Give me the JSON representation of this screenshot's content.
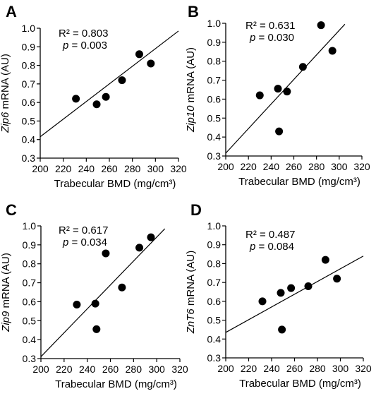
{
  "chart_data": [
    {
      "type": "scatter",
      "panel": "A",
      "xlabel": "Trabecular BMD (mg/cm³)",
      "ylabel_italic": "Zip6",
      "ylabel_rest": " mRNA (AU)",
      "xlim": [
        200,
        320
      ],
      "ylim": [
        0.3,
        1.0
      ],
      "xticks": [
        "200",
        "220",
        "240",
        "260",
        "280",
        "300",
        "320"
      ],
      "yticks": [
        "0.3",
        "0.4",
        "0.5",
        "0.6",
        "0.7",
        "0.8",
        "0.9",
        "1.0"
      ],
      "r2": "R² = 0.803",
      "p_label": "p",
      "p_value": " = 0.003",
      "points": [
        [
          231,
          0.62
        ],
        [
          249,
          0.59
        ],
        [
          257,
          0.63
        ],
        [
          271,
          0.72
        ],
        [
          286,
          0.86
        ],
        [
          296,
          0.81
        ]
      ],
      "fit": [
        [
          200,
          0.415
        ],
        [
          320,
          0.985
        ]
      ]
    },
    {
      "type": "scatter",
      "panel": "B",
      "xlabel": "Trabecular BMD (mg/cm³)",
      "ylabel_italic": "Zip10",
      "ylabel_rest": " mRNA (AU)",
      "xlim": [
        200,
        320
      ],
      "ylim": [
        0.3,
        1.0
      ],
      "xticks": [
        "200",
        "220",
        "240",
        "260",
        "280",
        "300",
        "320"
      ],
      "yticks": [
        "0.3",
        "0.4",
        "0.5",
        "0.6",
        "0.7",
        "0.8",
        "0.9",
        "1.0"
      ],
      "r2": "R² = 0.631",
      "p_label": "p",
      "p_value": " = 0.030",
      "points": [
        [
          230,
          0.62
        ],
        [
          246,
          0.655
        ],
        [
          247,
          0.43
        ],
        [
          254,
          0.64
        ],
        [
          268,
          0.77
        ],
        [
          284,
          0.99
        ],
        [
          294,
          0.855
        ]
      ],
      "fit": [
        [
          200,
          0.315
        ],
        [
          305,
          0.995
        ]
      ]
    },
    {
      "type": "scatter",
      "panel": "C",
      "xlabel": "Trabecular BMD (mg/cm³)",
      "ylabel_italic": "Zip9",
      "ylabel_rest": " mRNA (AU)",
      "xlim": [
        200,
        320
      ],
      "ylim": [
        0.3,
        1.0
      ],
      "xticks": [
        "200",
        "220",
        "240",
        "260",
        "280",
        "300",
        "320"
      ],
      "yticks": [
        "0.3",
        "0.4",
        "0.5",
        "0.6",
        "0.7",
        "0.8",
        "0.9",
        "1.0"
      ],
      "r2": "R² = 0.617",
      "p_label": "p",
      "p_value": " = 0.034",
      "points": [
        [
          231,
          0.585
        ],
        [
          247,
          0.59
        ],
        [
          248,
          0.455
        ],
        [
          256,
          0.855
        ],
        [
          270,
          0.675
        ],
        [
          285,
          0.885
        ],
        [
          295,
          0.94
        ]
      ],
      "fit": [
        [
          200,
          0.31
        ],
        [
          307,
          0.985
        ]
      ]
    },
    {
      "type": "scatter",
      "panel": "D",
      "xlabel": "Trabecular BMD (mg/cm³)",
      "ylabel_italic": "ZnT6",
      "ylabel_rest": " mRNA (AU)",
      "xlim": [
        200,
        320
      ],
      "ylim": [
        0.3,
        1.0
      ],
      "xticks": [
        "200",
        "220",
        "240",
        "260",
        "280",
        "300",
        "320"
      ],
      "yticks": [
        "0.3",
        "0.4",
        "0.5",
        "0.6",
        "0.7",
        "0.8",
        "0.9",
        "1.0"
      ],
      "r2": "R² = 0.487",
      "p_label": "p",
      "p_value": " = 0.084",
      "points": [
        [
          232,
          0.6
        ],
        [
          248,
          0.645
        ],
        [
          249,
          0.45
        ],
        [
          257,
          0.67
        ],
        [
          272,
          0.68
        ],
        [
          287,
          0.82
        ],
        [
          297,
          0.72
        ]
      ],
      "fit": [
        [
          200,
          0.435
        ],
        [
          320,
          0.84
        ]
      ]
    }
  ]
}
